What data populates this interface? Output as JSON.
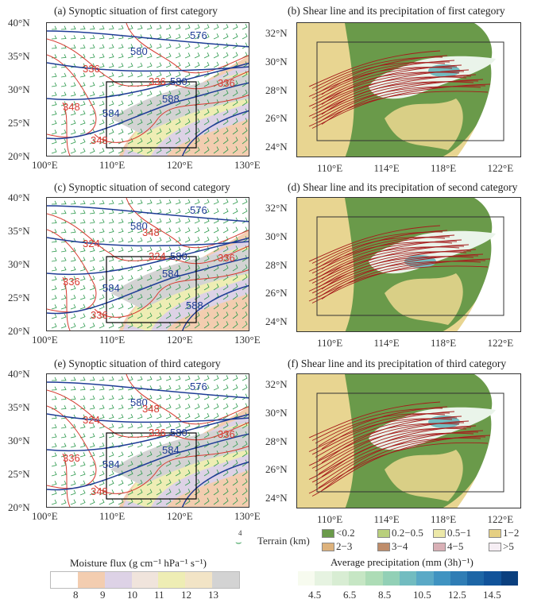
{
  "panels": [
    {
      "id": "a",
      "kind": "synoptic",
      "title": "(a) Synoptic situation of first category",
      "blue_labels": [
        "576",
        "580",
        "580",
        "584",
        "588"
      ],
      "red_labels": [
        "336",
        "336",
        "336",
        "348",
        "348"
      ]
    },
    {
      "id": "b",
      "kind": "shear",
      "title": "(b) Shear line and its precipitation of first category"
    },
    {
      "id": "c",
      "kind": "synoptic",
      "title": "(c) Synoptic situation of second category",
      "blue_labels": [
        "576",
        "580",
        "580",
        "584",
        "584",
        "588"
      ],
      "red_labels": [
        "324",
        "324",
        "336",
        "336",
        "336",
        "348"
      ]
    },
    {
      "id": "d",
      "kind": "shear",
      "title": "(d) Shear line and its precipitation of second category"
    },
    {
      "id": "e",
      "kind": "synoptic",
      "title": "(e) Synoptic situation of third category",
      "blue_labels": [
        "576",
        "580",
        "580",
        "584",
        "584"
      ],
      "red_labels": [
        "324",
        "336",
        "336",
        "336",
        "348",
        "348"
      ]
    },
    {
      "id": "f",
      "kind": "shear",
      "title": "(f) Shear line and its precipitation of third category"
    }
  ],
  "left_axes": {
    "x_ticks": [
      "100°E",
      "110°E",
      "120°E",
      "130°E"
    ],
    "y_ticks": [
      "40°N",
      "35°N",
      "30°N",
      "25°N",
      "20°N"
    ]
  },
  "right_axes": {
    "x_ticks": [
      "110°E",
      "114°E",
      "118°E",
      "122°E"
    ],
    "y_ticks": [
      "32°N",
      "30°N",
      "28°N",
      "26°N",
      "24°N"
    ]
  },
  "terrain_legend": {
    "wind_barb_ref": "4",
    "label": "Terrain (km)",
    "items": [
      {
        "label": "<0.2",
        "color": "#6a9a4a"
      },
      {
        "label": "0.2−0.5",
        "color": "#b9cf7c"
      },
      {
        "label": "0.5−1",
        "color": "#ece8a8"
      },
      {
        "label": "1−2",
        "color": "#e5cf82"
      },
      {
        "label": "2−3",
        "color": "#ddb27c"
      },
      {
        "label": "3−4",
        "color": "#be8c6a"
      },
      {
        "label": "4−5",
        "color": "#d9b0b6"
      },
      {
        "label": ">5",
        "color": "#f6eef4"
      }
    ]
  },
  "moisture_flux": {
    "label": "Moisture flux (g cm⁻¹ hPa⁻¹ s⁻¹)",
    "ticks": [
      "8",
      "9",
      "10",
      "11",
      "12",
      "13"
    ],
    "colors": [
      "#ffffff",
      "#f3cdb0",
      "#ddd2e6",
      "#f0e4dc",
      "#eeedb4",
      "#f2e4c6",
      "#d3d3d3"
    ]
  },
  "precipitation": {
    "label": "Average precipitation (mm (3h)⁻¹)",
    "ticks": [
      "4.5",
      "6.5",
      "8.5",
      "10.5",
      "12.5",
      "14.5"
    ],
    "colors": [
      "#f7fbef",
      "#e6f3e1",
      "#d8edd3",
      "#c6e6c4",
      "#addcb6",
      "#92d0b6",
      "#72bcc0",
      "#5aa9c6",
      "#3f93c1",
      "#2f7db5",
      "#1d66a6",
      "#11539a",
      "#0a3f7e"
    ]
  }
}
